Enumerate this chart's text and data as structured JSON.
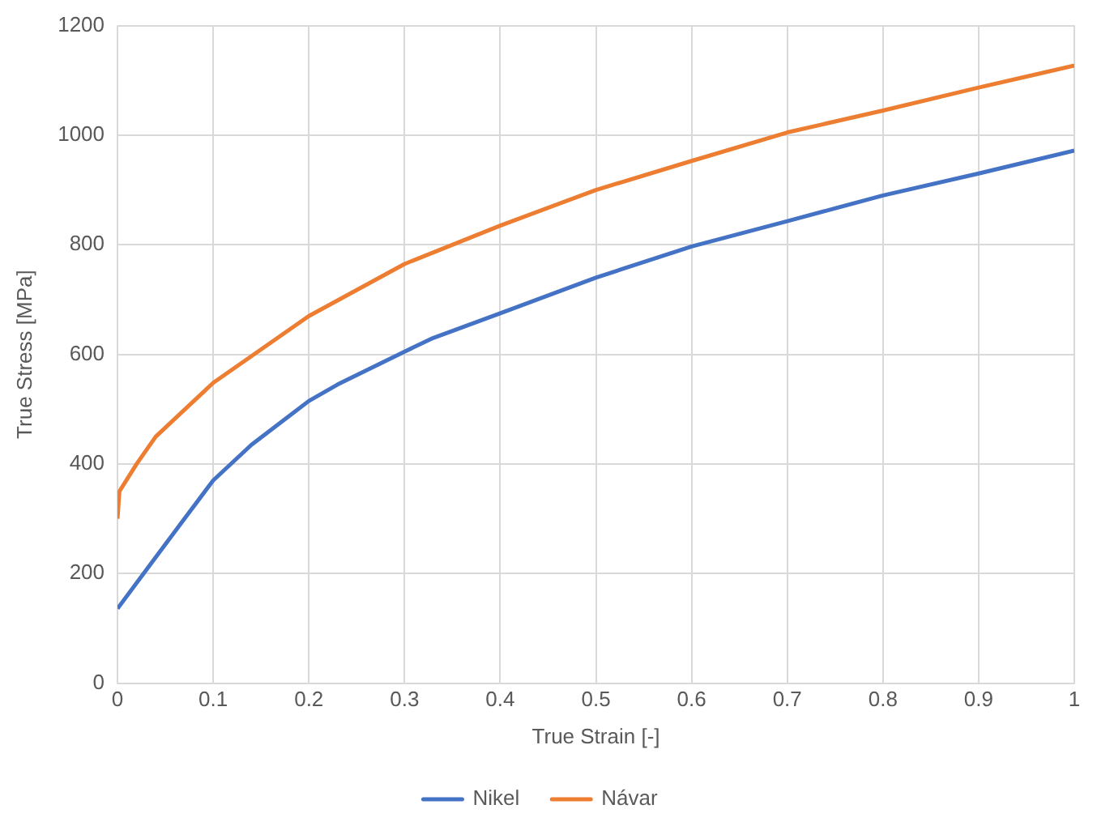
{
  "chart_data": {
    "type": "line",
    "xlabel": "True Strain [-]",
    "ylabel": "True Stress [MPa]",
    "xlim": [
      0,
      1
    ],
    "xticks": [
      0,
      0.1,
      0.2,
      0.3,
      0.4,
      0.5,
      0.6,
      0.7,
      0.8,
      0.9,
      1
    ],
    "ylim": [
      0,
      1200
    ],
    "yticks": [
      0,
      200,
      400,
      600,
      800,
      1000,
      1200
    ],
    "grid": true,
    "legend": "bottom",
    "marker": "none",
    "line_style": "solid",
    "series": [
      {
        "name": "Nikel",
        "color": "#4472c4",
        "x": [
          0,
          0.04,
          0.07,
          0.1,
          0.14,
          0.2,
          0.23,
          0.3,
          0.33,
          0.4,
          0.5,
          0.6,
          0.7,
          0.8,
          0.9,
          1
        ],
        "values": [
          136,
          230,
          300,
          370,
          435,
          515,
          545,
          605,
          630,
          675,
          740,
          797,
          843,
          890,
          930,
          972
        ]
      },
      {
        "name": "Návar",
        "color": "#ed7d31",
        "x": [
          0,
          0.002,
          0.02,
          0.04,
          0.1,
          0.2,
          0.3,
          0.4,
          0.5,
          0.6,
          0.7,
          0.8,
          0.9,
          1
        ],
        "values": [
          300,
          350,
          400,
          450,
          548,
          670,
          765,
          835,
          900,
          953,
          1005,
          1045,
          1087,
          1127
        ]
      }
    ]
  }
}
